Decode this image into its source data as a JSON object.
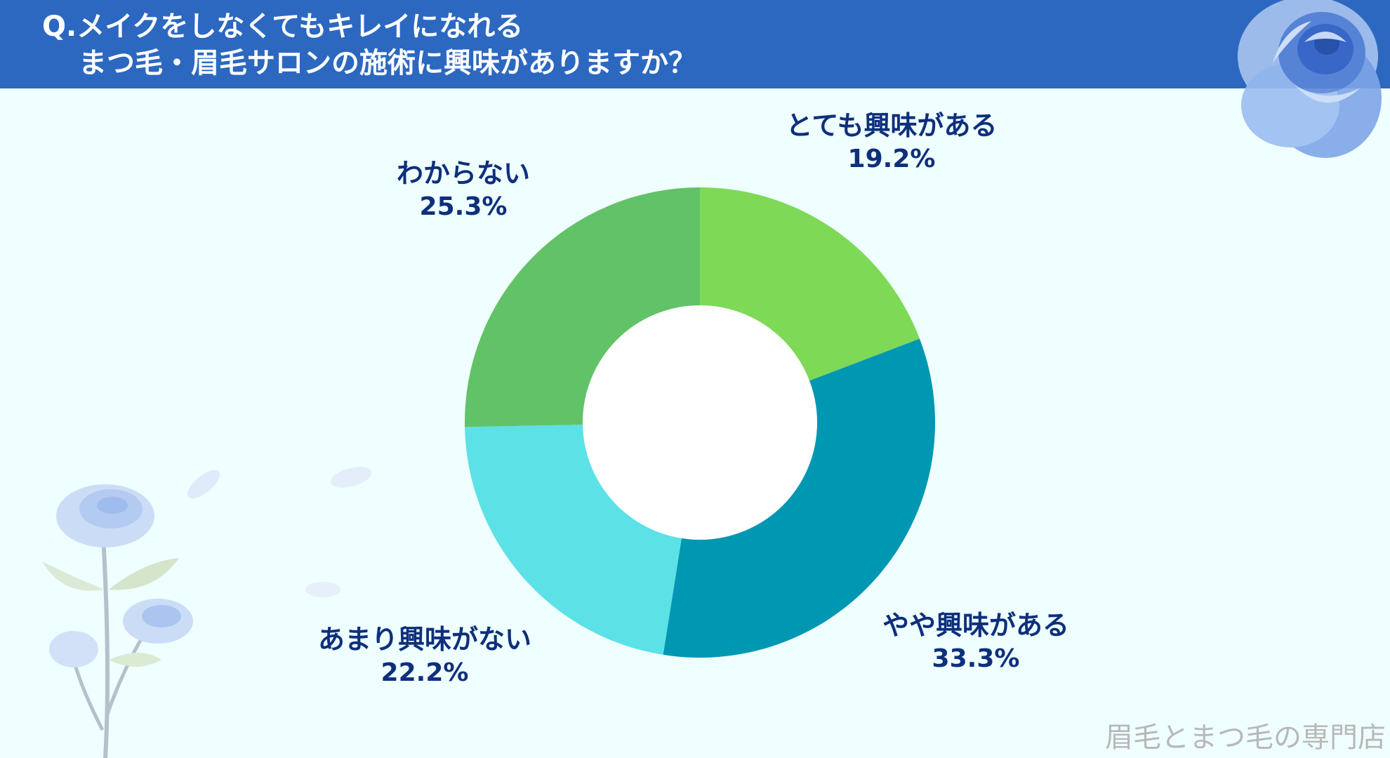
{
  "header": {
    "title_line1": "Q.メイクをしなくてもキレイになれる",
    "title_line2": "まつ毛・眉毛サロンの施術に興味がありますか？"
  },
  "colors": {
    "header_bg": "#2c68c0",
    "background": "#effefe",
    "label_text": "#0d2f7c"
  },
  "chart_data": {
    "type": "pie",
    "donut": true,
    "title": "Q.メイクをしなくてもキレイになれる まつ毛・眉毛サロンの施術に興味がありますか？",
    "slices": [
      {
        "label": "とても興味がある",
        "value": 19.2,
        "value_label": "19.2%",
        "color": "#7ed957"
      },
      {
        "label": "やや興味がある",
        "value": 33.3,
        "value_label": "33.3%",
        "color": "#0097b2"
      },
      {
        "label": "あまり興味がない",
        "value": 22.2,
        "value_label": "22.2%",
        "color": "#5ce1e6"
      },
      {
        "label": "わからない",
        "value": 25.3,
        "value_label": "25.3%",
        "color": "#62c267"
      }
    ]
  },
  "decorations": {
    "top_right": "blue-rose-icon",
    "bottom_left": "blue-rose-bouquet-icon"
  },
  "watermark": "眉毛とまつ毛の専門店"
}
